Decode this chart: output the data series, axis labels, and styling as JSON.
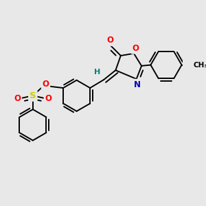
{
  "bg_color": "#e8e8e8",
  "bond_color": "#000000",
  "bond_width": 1.4,
  "atom_colors": {
    "O": "#ff0000",
    "N": "#0000bb",
    "S": "#cccc00",
    "H": "#008080",
    "C": "#000000"
  },
  "font_size": 8.5
}
